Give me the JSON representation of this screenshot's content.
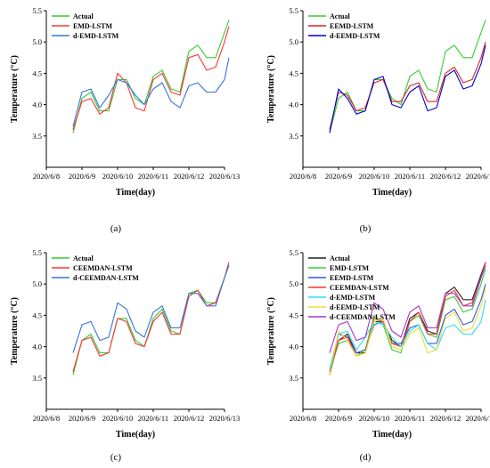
{
  "panels": [
    {
      "caption": "(a)",
      "chart_data": {
        "type": "line",
        "xlabel": "Time(day)",
        "ylabel": "Temperature (°C)",
        "xlim": [
          "2020/6/8",
          "2020/6/13"
        ],
        "ylim": [
          3.0,
          5.5
        ],
        "xticks": [
          "2020/6/8",
          "2020/6/9",
          "2020/6/10",
          "2020/6/11",
          "2020/6/12",
          "2020/6/13"
        ],
        "yticks": [
          3.5,
          4.0,
          4.5,
          5.0,
          5.5
        ],
        "legend": "top-left",
        "x": [
          "2020/6/8 18:00",
          "2020/6/9 00:00",
          "2020/6/9 06:00",
          "2020/6/9 12:00",
          "2020/6/9 18:00",
          "2020/6/10 00:00",
          "2020/6/10 06:00",
          "2020/6/10 12:00",
          "2020/6/10 18:00",
          "2020/6/11 00:00",
          "2020/6/11 06:00",
          "2020/6/11 12:00",
          "2020/6/11 18:00",
          "2020/6/12 00:00",
          "2020/6/12 06:00",
          "2020/6/12 12:00",
          "2020/6/12 18:00",
          "2020/6/13 00:00",
          "2020/6/13 03:00"
        ],
        "series": [
          {
            "name": "Actual",
            "color": "#33cc33",
            "values": [
              3.55,
              4.1,
              4.2,
              3.9,
              3.9,
              4.4,
              4.4,
              4.1,
              4.0,
              4.45,
              4.55,
              4.25,
              4.2,
              4.85,
              4.95,
              4.75,
              4.75,
              5.15,
              5.35
            ]
          },
          {
            "name": "EMD-LSTM",
            "color": "#ff3333",
            "values": [
              3.6,
              4.05,
              4.1,
              3.85,
              3.95,
              4.5,
              4.35,
              3.95,
              3.9,
              4.4,
              4.5,
              4.2,
              4.15,
              4.75,
              4.8,
              4.55,
              4.6,
              5.0,
              5.25
            ]
          },
          {
            "name": "d-EMD-LSTM",
            "color": "#3377dd",
            "values": [
              3.65,
              4.2,
              4.25,
              3.95,
              4.15,
              4.4,
              4.35,
              4.15,
              4.0,
              4.25,
              4.35,
              4.05,
              3.95,
              4.3,
              4.35,
              4.2,
              4.2,
              4.4,
              4.75
            ]
          }
        ]
      }
    },
    {
      "caption": "(b)",
      "chart_data": {
        "type": "line",
        "xlabel": "Time(day)",
        "ylabel": "Temperature (°C)",
        "xlim": [
          "2020/6/8",
          "2020/6/13"
        ],
        "ylim": [
          3.0,
          5.5
        ],
        "xticks": [
          "2020/6/8",
          "2020/6/9",
          "2020/6/10",
          "2020/6/11",
          "2020/6/12",
          "2020/6/13"
        ],
        "yticks": [
          3.5,
          4.0,
          4.5,
          5.0,
          5.5
        ],
        "legend": "top-left",
        "x": [
          "2020/6/8 18:00",
          "2020/6/9 00:00",
          "2020/6/9 06:00",
          "2020/6/9 12:00",
          "2020/6/9 18:00",
          "2020/6/10 00:00",
          "2020/6/10 06:00",
          "2020/6/10 12:00",
          "2020/6/10 18:00",
          "2020/6/11 00:00",
          "2020/6/11 06:00",
          "2020/6/11 12:00",
          "2020/6/11 18:00",
          "2020/6/12 00:00",
          "2020/6/12 06:00",
          "2020/6/12 12:00",
          "2020/6/12 18:00",
          "2020/6/13 00:00",
          "2020/6/13 03:00"
        ],
        "series": [
          {
            "name": "Actual",
            "color": "#33cc33",
            "values": [
              3.55,
              4.1,
              4.2,
              3.9,
              3.9,
              4.4,
              4.4,
              4.1,
              4.0,
              4.45,
              4.55,
              4.25,
              4.2,
              4.85,
              4.95,
              4.75,
              4.75,
              5.15,
              5.35
            ]
          },
          {
            "name": "EEMD-LSTM",
            "color": "#dd2222",
            "values": [
              3.6,
              4.2,
              4.15,
              3.9,
              3.95,
              4.35,
              4.4,
              4.05,
              4.05,
              4.3,
              4.35,
              4.05,
              4.05,
              4.5,
              4.6,
              4.35,
              4.4,
              4.75,
              5.0
            ]
          },
          {
            "name": "d-EEMD-LSTM",
            "color": "#0000cc",
            "values": [
              3.55,
              4.25,
              4.1,
              3.85,
              3.9,
              4.4,
              4.45,
              4.0,
              3.95,
              4.2,
              4.3,
              3.9,
              3.95,
              4.45,
              4.55,
              4.25,
              4.3,
              4.65,
              4.95
            ]
          }
        ]
      }
    },
    {
      "caption": "(c)",
      "chart_data": {
        "type": "line",
        "xlabel": "Time(day)",
        "ylabel": "Temperature (°C)",
        "xlim": [
          "2020/6/8",
          "2020/6/13"
        ],
        "ylim": [
          3.0,
          5.5
        ],
        "xticks": [
          "2020/6/8",
          "2020/6/9",
          "2020/6/10",
          "2020/6/11",
          "2020/6/12",
          "2020/6/13"
        ],
        "yticks": [
          3.5,
          4.0,
          4.5,
          5.0,
          5.5
        ],
        "legend": "top-left",
        "x": [
          "2020/6/8 18:00",
          "2020/6/9 00:00",
          "2020/6/9 06:00",
          "2020/6/9 12:00",
          "2020/6/9 18:00",
          "2020/6/10 00:00",
          "2020/6/10 06:00",
          "2020/6/10 12:00",
          "2020/6/10 18:00",
          "2020/6/11 00:00",
          "2020/6/11 06:00",
          "2020/6/11 12:00",
          "2020/6/11 18:00",
          "2020/6/12 00:00",
          "2020/6/12 06:00",
          "2020/6/12 12:00",
          "2020/6/12 18:00",
          "2020/6/13 00:00",
          "2020/6/13 03:00"
        ],
        "series": [
          {
            "name": "Actual",
            "color": "#33cc33",
            "values": [
              3.55,
              4.1,
              4.2,
              3.9,
              3.9,
              4.45,
              4.45,
              4.1,
              4.0,
              4.45,
              4.6,
              4.25,
              4.2,
              4.85,
              4.9,
              4.7,
              4.7,
              5.1,
              5.3
            ]
          },
          {
            "name": "CEEMDAN-LSTM",
            "color": "#ff3333",
            "values": [
              3.6,
              4.1,
              4.15,
              3.85,
              3.9,
              4.45,
              4.4,
              4.05,
              4.0,
              4.4,
              4.55,
              4.2,
              4.2,
              4.8,
              4.9,
              4.65,
              4.7,
              5.1,
              5.35
            ]
          },
          {
            "name": "d-CEEMDAN-LSTM",
            "color": "#3377dd",
            "values": [
              3.9,
              4.35,
              4.4,
              4.1,
              4.15,
              4.7,
              4.6,
              4.25,
              4.15,
              4.55,
              4.65,
              4.3,
              4.3,
              4.85,
              4.85,
              4.65,
              4.65,
              5.1,
              5.3
            ]
          }
        ]
      }
    },
    {
      "caption": "(d)",
      "chart_data": {
        "type": "line",
        "xlabel": "Time(day)",
        "ylabel": "Temperature (°C)",
        "xlim": [
          "2020/6/8",
          "2020/6/13"
        ],
        "ylim": [
          3.0,
          5.5
        ],
        "xticks": [
          "2020/6/8",
          "2020/6/9",
          "2020/6/10",
          "2020/6/11",
          "2020/6/12",
          "2020/6/13"
        ],
        "yticks": [
          3.5,
          4.0,
          4.5,
          5.0,
          5.5
        ],
        "legend": "top-left",
        "x": [
          "2020/6/8 18:00",
          "2020/6/9 00:00",
          "2020/6/9 06:00",
          "2020/6/9 12:00",
          "2020/6/9 18:00",
          "2020/6/10 00:00",
          "2020/6/10 06:00",
          "2020/6/10 12:00",
          "2020/6/10 18:00",
          "2020/6/11 00:00",
          "2020/6/11 06:00",
          "2020/6/11 12:00",
          "2020/6/11 18:00",
          "2020/6/12 00:00",
          "2020/6/12 06:00",
          "2020/6/12 12:00",
          "2020/6/12 18:00",
          "2020/6/13 00:00",
          "2020/6/13 03:00"
        ],
        "series": [
          {
            "name": "Actual",
            "color": "#222222",
            "values": [
              3.55,
              4.1,
              4.2,
              3.9,
              3.9,
              4.4,
              4.4,
              4.1,
              4.0,
              4.45,
              4.55,
              4.25,
              4.2,
              4.85,
              4.95,
              4.75,
              4.75,
              5.15,
              5.35
            ]
          },
          {
            "name": "EMD-LSTM",
            "color": "#33cc33",
            "values": [
              3.6,
              4.05,
              4.1,
              3.85,
              3.95,
              4.5,
              4.35,
              3.95,
              3.9,
              4.4,
              4.5,
              4.2,
              4.15,
              4.75,
              4.8,
              4.55,
              4.6,
              5.0,
              5.25
            ]
          },
          {
            "name": "EEMD-LSTM",
            "color": "#3355ee",
            "values": [
              3.6,
              4.2,
              4.15,
              3.9,
              3.95,
              4.35,
              4.4,
              4.05,
              4.05,
              4.3,
              4.35,
              4.05,
              4.05,
              4.5,
              4.6,
              4.35,
              4.4,
              4.75,
              5.0
            ]
          },
          {
            "name": "CEEMDAN-LSTM",
            "color": "#ff3333",
            "values": [
              3.6,
              4.1,
              4.15,
              3.85,
              3.9,
              4.45,
              4.4,
              4.05,
              4.0,
              4.4,
              4.55,
              4.2,
              4.2,
              4.8,
              4.9,
              4.65,
              4.7,
              5.1,
              5.35
            ]
          },
          {
            "name": "d-EMD-LSTM",
            "color": "#33ddee",
            "values": [
              3.65,
              4.2,
              4.25,
              3.95,
              4.15,
              4.4,
              4.35,
              4.15,
              4.0,
              4.25,
              4.35,
              4.05,
              3.95,
              4.3,
              4.35,
              4.2,
              4.2,
              4.4,
              4.75
            ]
          },
          {
            "name": "d-EEMD-LSTM",
            "color": "#eedd33",
            "values": [
              3.55,
              4.25,
              4.1,
              3.85,
              3.9,
              4.4,
              4.45,
              4.0,
              3.95,
              4.2,
              4.3,
              3.9,
              3.95,
              4.45,
              4.55,
              4.25,
              4.3,
              4.65,
              4.95
            ]
          },
          {
            "name": "d-CEEMDAN-LSTM",
            "color": "#aa33cc",
            "values": [
              3.9,
              4.35,
              4.4,
              4.1,
              4.15,
              4.7,
              4.6,
              4.25,
              4.15,
              4.55,
              4.65,
              4.3,
              4.3,
              4.85,
              4.85,
              4.65,
              4.65,
              5.1,
              5.3
            ]
          }
        ]
      }
    }
  ]
}
